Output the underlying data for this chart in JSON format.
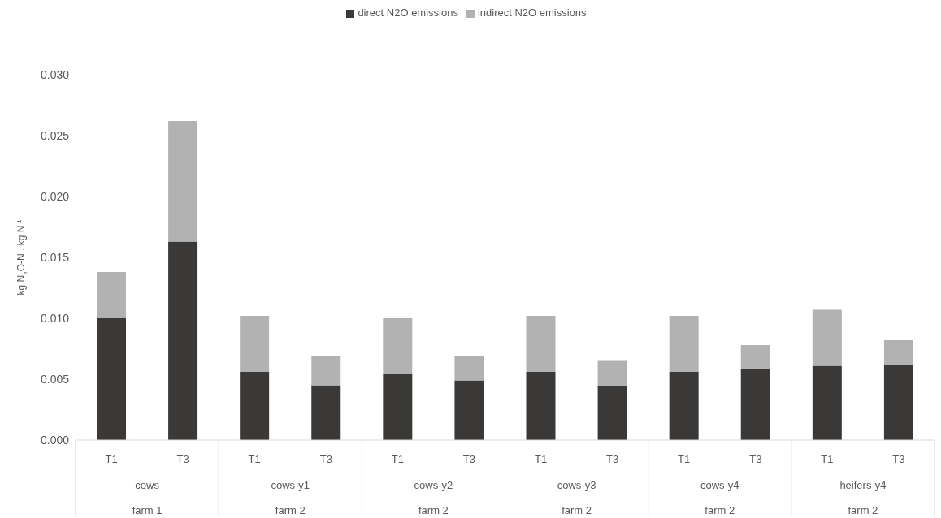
{
  "chart_data": {
    "type": "bar",
    "stacked": true,
    "categories": [
      "T1",
      "T3",
      "T1",
      "T3",
      "T1",
      "T3",
      "T1",
      "T3",
      "T1",
      "T3",
      "T1",
      "T3"
    ],
    "annotations": [
      "cows",
      "farm 1",
      "cows-y1",
      "farm 2",
      "cows-y2",
      "farm 2",
      "cows-y3",
      "farm 2",
      "cows-y4",
      "farm 2",
      "heifers-y4",
      "farm 2"
    ],
    "series": [
      {
        "name": "direct N2O emissions",
        "color": "#3a3937",
        "values": [
          0.01,
          0.0163,
          0.0056,
          0.0045,
          0.0054,
          0.0049,
          0.0056,
          0.0044,
          0.0056,
          0.0058,
          0.0061,
          0.0062
        ]
      },
      {
        "name": "indirect N2O emissions",
        "color": "#b2b2b2",
        "values": [
          0.0038,
          0.0099,
          0.0046,
          0.0024,
          0.0046,
          0.002,
          0.0046,
          0.0021,
          0.0046,
          0.002,
          0.0046,
          0.002
        ]
      }
    ],
    "ylabel": "kg N$_{2}$O-N . kg N$^{-1}$",
    "ylim": [
      0,
      0.03
    ],
    "yticks": [
      {
        "value": 0,
        "label": "0.000"
      },
      {
        "value": 0.005,
        "label": "0.005"
      },
      {
        "value": 0.01,
        "label": "0.010"
      },
      {
        "value": 0.015,
        "label": "0.015"
      },
      {
        "value": 0.02,
        "label": "0.020"
      },
      {
        "value": 0.025,
        "label": "0.025"
      },
      {
        "value": 0.03,
        "label": "0.030"
      }
    ],
    "grid": false,
    "legend": "top"
  }
}
